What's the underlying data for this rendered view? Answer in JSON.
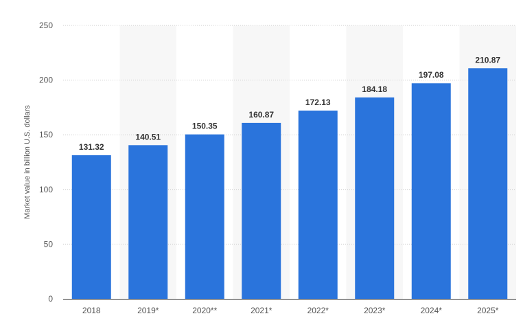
{
  "chart_data": {
    "type": "bar",
    "categories": [
      "2018",
      "2019*",
      "2020**",
      "2021*",
      "2022*",
      "2023*",
      "2024*",
      "2025*"
    ],
    "values": [
      131.32,
      140.51,
      150.35,
      160.87,
      172.13,
      184.18,
      197.08,
      210.87
    ],
    "value_labels": [
      "131.32",
      "140.51",
      "150.35",
      "160.87",
      "172.13",
      "184.18",
      "197.08",
      "210.87"
    ],
    "ylabel": "Market value in billion U.S. dollars",
    "ylim": [
      0,
      250
    ],
    "yticks": [
      "0",
      "50",
      "100",
      "150",
      "200",
      "250"
    ],
    "grid": true,
    "colors": {
      "bar": "#2a74dc",
      "alt_band": "#f7f7f7",
      "grid": "#cccccc",
      "axis": "#333333"
    }
  }
}
